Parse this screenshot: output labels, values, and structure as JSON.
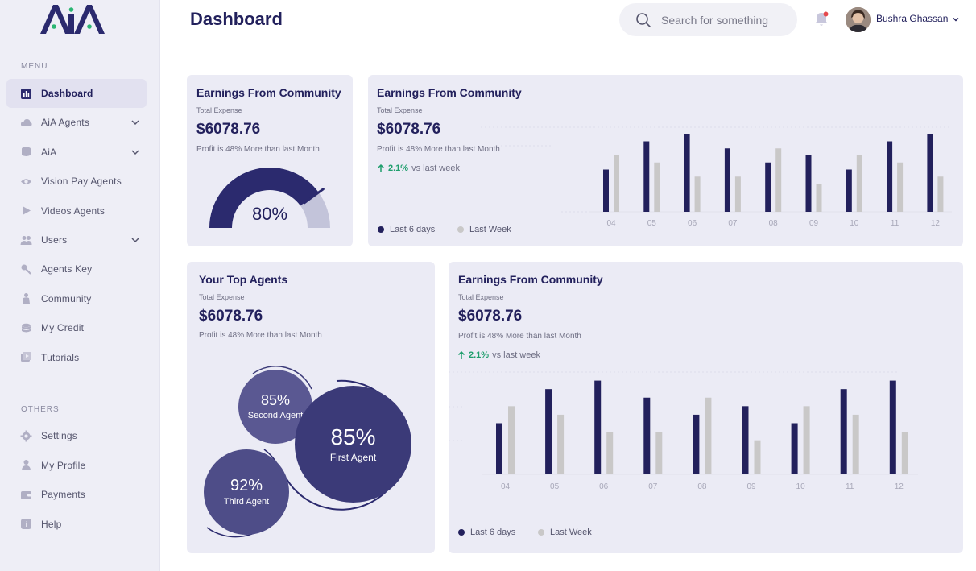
{
  "app": {
    "logo_text": "AiA"
  },
  "sidebar": {
    "menu_label": "MENU",
    "others_label": "OTHERS",
    "menu_items": [
      {
        "label": "Dashboard",
        "icon": "bar-chart-icon",
        "active": true
      },
      {
        "label": "AiA Agents",
        "icon": "cloud-icon",
        "expandable": true
      },
      {
        "label": "AiA",
        "icon": "database-icon",
        "expandable": true
      },
      {
        "label": "Vision Pay Agents",
        "icon": "eye-icon"
      },
      {
        "label": "Videos Agents",
        "icon": "play-icon"
      },
      {
        "label": "Users",
        "icon": "users-icon",
        "expandable": true
      },
      {
        "label": "Agents Key",
        "icon": "key-icon"
      },
      {
        "label": "Community",
        "icon": "community-icon"
      },
      {
        "label": "My Credit",
        "icon": "coins-icon"
      },
      {
        "label": "Tutorials",
        "icon": "video-play-icon"
      }
    ],
    "other_items": [
      {
        "label": "Settings",
        "icon": "gear-icon"
      },
      {
        "label": "My Profile",
        "icon": "user-icon"
      },
      {
        "label": "Payments",
        "icon": "wallet-icon"
      },
      {
        "label": "Help",
        "icon": "help-icon"
      }
    ]
  },
  "header": {
    "title": "Dashboard",
    "search_placeholder": "Search for something",
    "user_name": "Bushra Ghassan"
  },
  "cards": {
    "gauge": {
      "title": "Earnings From Community",
      "subtitle": "Total Expense",
      "amount": "$6078.76",
      "profit": "Profit is 48% More than last Month",
      "gauge_value": 80,
      "gauge_label": "80%"
    },
    "bar_top": {
      "title": "Earnings From Community",
      "subtitle": "Total Expense",
      "amount": "$6078.76",
      "profit": "Profit is 48% More than last Month",
      "trend_value": "2.1%",
      "trend_text": "vs last week",
      "legend_a": "Last 6 days",
      "legend_b": "Last Week"
    },
    "agents": {
      "title": "Your Top Agents",
      "subtitle": "Total Expense",
      "amount": "$6078.76",
      "profit": "Profit is 48% More than last Month",
      "bubbles": [
        {
          "pct": "85%",
          "name": "First Agent"
        },
        {
          "pct": "85%",
          "name": "Second Agent"
        },
        {
          "pct": "92%",
          "name": "Third Agent"
        }
      ]
    },
    "bar_bottom": {
      "title": "Earnings From Community",
      "subtitle": "Total Expense",
      "amount": "$6078.76",
      "profit": "Profit is 48% More than last Month",
      "trend_value": "2.1%",
      "trend_text": "vs last week",
      "legend_a": "Last 6 days",
      "legend_b": "Last Week"
    }
  },
  "colors": {
    "primary": "#22205c",
    "secondary": "#c9c8c8",
    "accent_green": "#1f9e6d",
    "notification": "#e5484d",
    "gauge_track": "#c3c4da"
  },
  "chart_data": [
    {
      "type": "bar",
      "title": "Earnings From Community",
      "categories": [
        "04",
        "05",
        "06",
        "07",
        "08",
        "09",
        "10",
        "11",
        "12"
      ],
      "series": [
        {
          "name": "Last 6 days",
          "values": [
            60,
            100,
            110,
            90,
            70,
            80,
            60,
            100,
            110
          ]
        },
        {
          "name": "Last Week",
          "values": [
            80,
            70,
            50,
            50,
            90,
            40,
            80,
            70,
            50
          ]
        }
      ],
      "ylim": [
        0,
        120
      ]
    },
    {
      "type": "bar",
      "title": "Earnings From Community",
      "categories": [
        "04",
        "05",
        "06",
        "07",
        "08",
        "09",
        "10",
        "11",
        "12"
      ],
      "series": [
        {
          "name": "Last 6 days",
          "values": [
            60,
            100,
            110,
            90,
            70,
            80,
            60,
            100,
            110
          ]
        },
        {
          "name": "Last Week",
          "values": [
            80,
            70,
            50,
            50,
            90,
            40,
            80,
            70,
            50
          ]
        }
      ],
      "ylim": [
        0,
        120
      ]
    }
  ]
}
